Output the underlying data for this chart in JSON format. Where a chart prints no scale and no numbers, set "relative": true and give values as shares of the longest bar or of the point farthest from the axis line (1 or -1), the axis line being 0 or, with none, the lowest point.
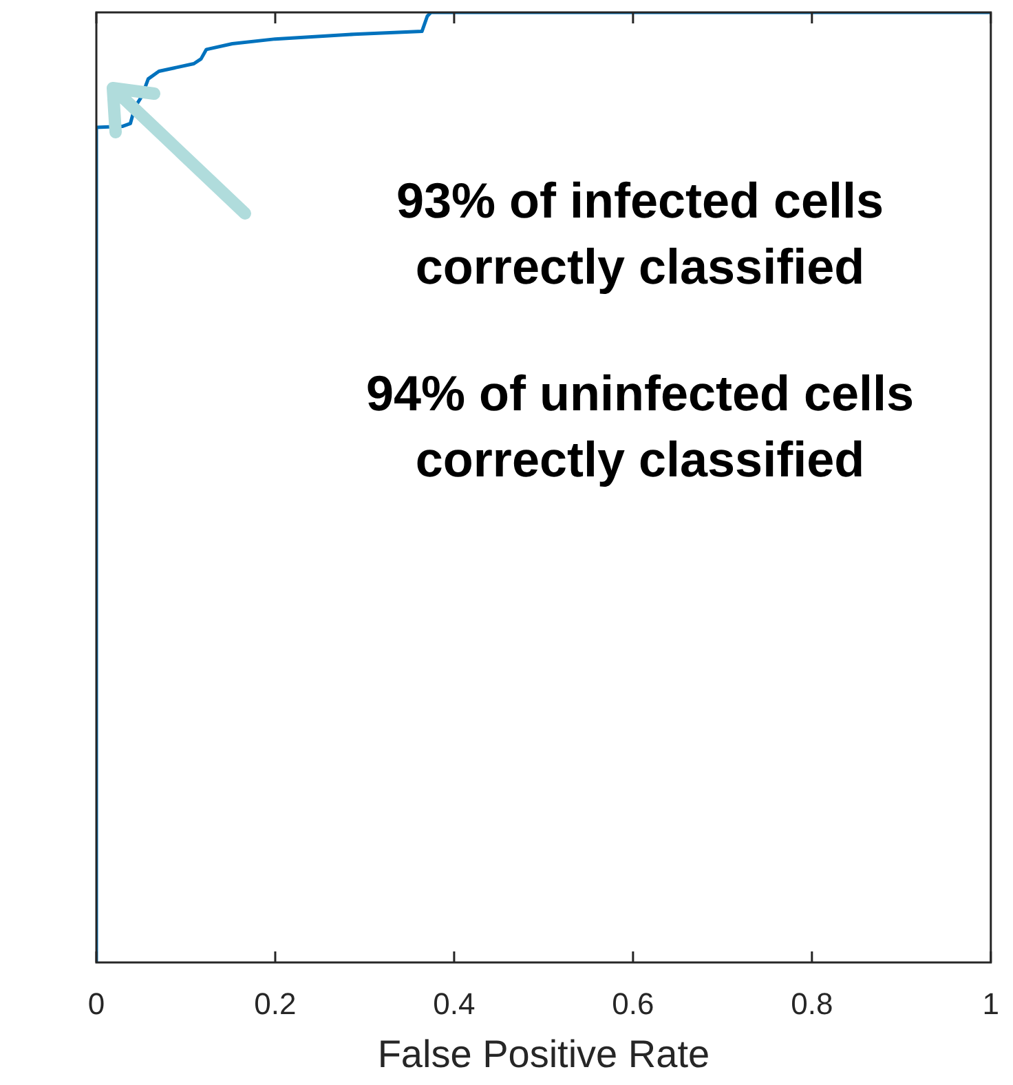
{
  "chart_data": {
    "type": "line",
    "xlabel": "False Positive Rate",
    "annotations": [
      "93% of infected cells\ncorrectly classified",
      "94% of uninfected cells\ncorrectly classified"
    ],
    "series": [
      {
        "color": "#0072bd",
        "x": [
          0,
          0,
          0.029,
          0.038,
          0.043,
          0.051,
          0.058,
          0.07,
          0.109,
          0.117,
          0.123,
          0.152,
          0.2,
          0.288,
          0.364,
          0.37,
          0.374,
          1
        ],
        "values": [
          0,
          0.879,
          0.88,
          0.883,
          0.9,
          0.912,
          0.93,
          0.938,
          0.946,
          0.951,
          0.961,
          0.967,
          0.972,
          0.977,
          0.98,
          0.996,
          1,
          1
        ]
      }
    ],
    "xlim": [
      0,
      1
    ],
    "xticks": [
      0,
      0.2,
      0.4,
      0.6,
      0.8,
      1
    ],
    "relative": true,
    "tick_labels": "x",
    "grid": false,
    "legend": false,
    "marker": "none",
    "line_style": "solid"
  }
}
